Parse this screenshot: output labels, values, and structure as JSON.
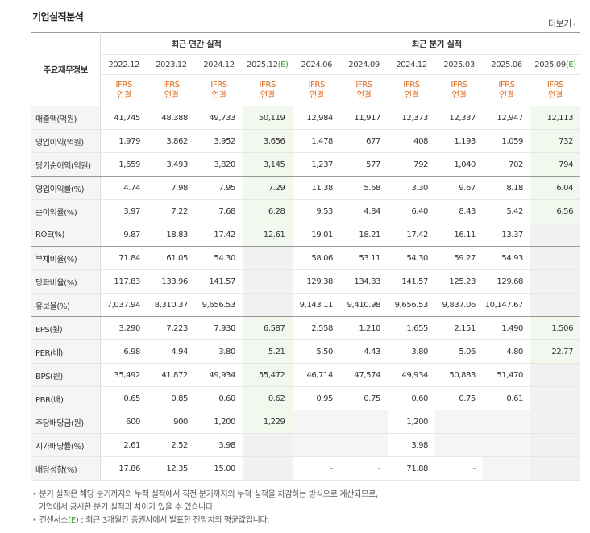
{
  "title": "기업실적분석",
  "more_label": "더보기",
  "header": {
    "row_head": "주요재무정보",
    "group_annual": "최근 연간 실적",
    "group_quarter": "최근 분기 실적",
    "periods": [
      {
        "label": "2022.12",
        "est": ""
      },
      {
        "label": "2023.12",
        "est": ""
      },
      {
        "label": "2024.12",
        "est": ""
      },
      {
        "label": "2025.12",
        "est": "(E)"
      },
      {
        "label": "2024.06",
        "est": ""
      },
      {
        "label": "2024.09",
        "est": ""
      },
      {
        "label": "2024.12",
        "est": ""
      },
      {
        "label": "2025.03",
        "est": ""
      },
      {
        "label": "2025.06",
        "est": ""
      },
      {
        "label": "2025.09",
        "est": "(E)"
      }
    ],
    "basis_line1": "IFRS",
    "basis_line2": "연결"
  },
  "rows": [
    {
      "label": "매출액(억원)",
      "values": [
        "41,745",
        "48,388",
        "49,733",
        "50,119",
        "12,984",
        "11,917",
        "12,373",
        "12,337",
        "12,947",
        "12,113"
      ]
    },
    {
      "label": "영업이익(억원)",
      "values": [
        "1,979",
        "3,862",
        "3,952",
        "3,656",
        "1,478",
        "677",
        "408",
        "1,193",
        "1,059",
        "732"
      ]
    },
    {
      "label": "당기순이익(억원)",
      "values": [
        "1,659",
        "3,493",
        "3,820",
        "3,145",
        "1,237",
        "577",
        "792",
        "1,040",
        "702",
        "794"
      ],
      "sep": true
    },
    {
      "label": "영업이익률(%)",
      "values": [
        "4.74",
        "7.98",
        "7.95",
        "7.29",
        "11.38",
        "5.68",
        "3.30",
        "9.67",
        "8.18",
        "6.04"
      ]
    },
    {
      "label": "순이익률(%)",
      "values": [
        "3.97",
        "7.22",
        "7.68",
        "6.28",
        "9.53",
        "4.84",
        "6.40",
        "8.43",
        "5.42",
        "6.56"
      ]
    },
    {
      "label": "ROE(%)",
      "values": [
        "9.87",
        "18.83",
        "17.42",
        "12.61",
        "19.01",
        "18.21",
        "17.42",
        "16.11",
        "13.37",
        ""
      ],
      "sep": true
    },
    {
      "label": "부채비율(%)",
      "values": [
        "71.84",
        "61.05",
        "54.30",
        "",
        "58.06",
        "53.11",
        "54.30",
        "59.27",
        "54.93",
        ""
      ]
    },
    {
      "label": "당좌비율(%)",
      "values": [
        "117.83",
        "133.96",
        "141.57",
        "",
        "129.38",
        "134.83",
        "141.57",
        "125.23",
        "129.68",
        ""
      ]
    },
    {
      "label": "유보율(%)",
      "values": [
        "7,037.94",
        "8,310.37",
        "9,656.53",
        "",
        "9,143.11",
        "9,410.98",
        "9,656.53",
        "9,837.06",
        "10,147.67",
        ""
      ],
      "sep": true
    },
    {
      "label": "EPS(원)",
      "values": [
        "3,290",
        "7,223",
        "7,930",
        "6,587",
        "2,558",
        "1,210",
        "1,655",
        "2,151",
        "1,490",
        "1,506"
      ]
    },
    {
      "label": "PER(배)",
      "values": [
        "6.98",
        "4.94",
        "3.80",
        "5.21",
        "5.50",
        "4.43",
        "3.80",
        "5.06",
        "4.80",
        "22.77"
      ]
    },
    {
      "label": "BPS(원)",
      "values": [
        "35,492",
        "41,872",
        "49,934",
        "55,472",
        "46,714",
        "47,574",
        "49,934",
        "50,883",
        "51,470",
        ""
      ]
    },
    {
      "label": "PBR(배)",
      "values": [
        "0.65",
        "0.85",
        "0.60",
        "0.62",
        "0.95",
        "0.75",
        "0.60",
        "0.75",
        "0.61",
        ""
      ],
      "sep": true
    },
    {
      "label": "주당배당금(원)",
      "values": [
        "600",
        "900",
        "1,200",
        "1,229",
        "",
        "",
        "1,200",
        "",
        "",
        ""
      ]
    },
    {
      "label": "시가배당률(%)",
      "values": [
        "2.61",
        "2.52",
        "3.98",
        "",
        "",
        "",
        "3.98",
        "",
        "",
        ""
      ]
    },
    {
      "label": "배당성향(%)",
      "values": [
        "17.86",
        "12.35",
        "15.00",
        "",
        "-",
        "-",
        "71.88",
        "-",
        "",
        ""
      ]
    }
  ],
  "notes": {
    "line1": "분기 실적은 해당 분기까지의 누적 실적에서 직전 분기까지의 누적 실적을 차감하는 방식으로 계산되므로,",
    "line2": "기업에서 공시한 분기 실적과 차이가 있을 수 있습니다.",
    "line3_pre": "컨센서스(",
    "line3_mark": "E",
    "line3_post": ") : 최근 3개월간 증권사에서 발표한 전망치의 평균값입니다."
  }
}
